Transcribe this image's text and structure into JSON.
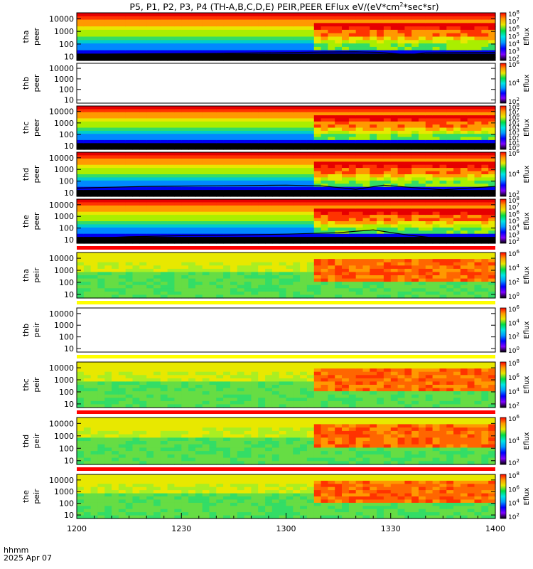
{
  "chart_data": {
    "type": "heatmap",
    "title": "P5, P1, P2, P3, P4 (TH-A,B,C,D,E) PEIR,PEER EFlux eV/(eV*cm^2*sec*sr)",
    "title_main": "P5, P1, P2, P3, P4 (TH-A,B,C,D,E) PEIR,PEER EFlux eV/(eV*cm",
    "title_sup": "2",
    "title_tail": "*sec*sr)",
    "x": {
      "label": "hhmm",
      "date": "2025 Apr 07",
      "ticks": [
        "1200",
        "1230",
        "1300",
        "1330",
        "1400"
      ],
      "range_minutes": [
        0,
        120
      ],
      "minor_step_minutes": 5
    },
    "colorbar_label": "Eflux",
    "panels": [
      {
        "probe": "tha",
        "species": "peer",
        "empty": false,
        "ylim": [
          5,
          30000
        ],
        "yscale": "log",
        "yticks": [
          "10",
          "100",
          "1000",
          "10000"
        ],
        "cbar_ticks": [
          "10^2",
          "10^3",
          "10^4",
          "10^5",
          "10^6",
          "10^7",
          "10^8"
        ],
        "scp_curve": [
          [
            0,
            15
          ],
          [
            10,
            16
          ],
          [
            20,
            17
          ],
          [
            40,
            18
          ],
          [
            60,
            21
          ],
          [
            70,
            23
          ],
          [
            80,
            24
          ],
          [
            87,
            22
          ],
          [
            95,
            14
          ],
          [
            100,
            20
          ],
          [
            110,
            21
          ],
          [
            120,
            22
          ]
        ]
      },
      {
        "probe": "thb",
        "species": "peer",
        "empty": true,
        "ylim": [
          5,
          30000
        ],
        "yscale": "log",
        "yticks": [
          "10",
          "100",
          "1000",
          "10000"
        ],
        "cbar_ticks": [
          "10^2",
          "10^4",
          "10^6"
        ]
      },
      {
        "probe": "thc",
        "species": "peer",
        "empty": false,
        "ylim": [
          5,
          30000
        ],
        "yscale": "log",
        "yticks": [
          "10",
          "100",
          "1000",
          "10000"
        ],
        "cbar_ticks": [
          "10^0",
          "10^1",
          "10^2",
          "10^3",
          "10^4",
          "10^5",
          "10^6",
          "10^7",
          "10^8"
        ]
      },
      {
        "probe": "thd",
        "species": "peer",
        "empty": false,
        "ylim": [
          5,
          30000
        ],
        "yscale": "log",
        "yticks": [
          "10",
          "100",
          "1000",
          "10000"
        ],
        "cbar_ticks": [
          "10^2",
          "10^4",
          "10^6"
        ],
        "scp_curve": [
          [
            0,
            25
          ],
          [
            10,
            30
          ],
          [
            20,
            35
          ],
          [
            40,
            40
          ],
          [
            60,
            45
          ],
          [
            70,
            40
          ],
          [
            80,
            20
          ],
          [
            88,
            45
          ],
          [
            95,
            30
          ],
          [
            105,
            18
          ],
          [
            112,
            25
          ],
          [
            120,
            35
          ]
        ]
      },
      {
        "probe": "the",
        "species": "peer",
        "empty": false,
        "ylim": [
          5,
          30000
        ],
        "yscale": "log",
        "yticks": [
          "10",
          "100",
          "1000",
          "10000"
        ],
        "cbar_ticks": [
          "10^2",
          "10^3",
          "10^4",
          "10^5",
          "10^6",
          "10^7",
          "10^8"
        ],
        "scp_curve": [
          [
            0,
            12
          ],
          [
            15,
            18
          ],
          [
            30,
            22
          ],
          [
            45,
            25
          ],
          [
            60,
            30
          ],
          [
            75,
            40
          ],
          [
            85,
            70
          ],
          [
            95,
            25
          ],
          [
            105,
            12
          ],
          [
            120,
            14
          ]
        ]
      },
      {
        "probe": "tha",
        "species": "peir",
        "empty": false,
        "ylim": [
          5,
          30000
        ],
        "yscale": "log",
        "yticks": [
          "10",
          "100",
          "1000",
          "10000"
        ],
        "cbar_ticks": [
          "10^0",
          "10^2",
          "10^4",
          "10^6"
        ]
      },
      {
        "probe": "thb",
        "species": "peir",
        "empty": true,
        "ylim": [
          5,
          30000
        ],
        "yscale": "log",
        "yticks": [
          "10",
          "100",
          "1000",
          "10000"
        ],
        "cbar_ticks": [
          "10^0",
          "10^2",
          "10^4",
          "10^6"
        ]
      },
      {
        "probe": "thc",
        "species": "peir",
        "empty": false,
        "ylim": [
          5,
          30000
        ],
        "yscale": "log",
        "yticks": [
          "10",
          "100",
          "1000",
          "10000"
        ],
        "cbar_ticks": [
          "10^2",
          "10^4",
          "10^6",
          "10^8"
        ]
      },
      {
        "probe": "thd",
        "species": "peir",
        "empty": false,
        "ylim": [
          5,
          30000
        ],
        "yscale": "log",
        "yticks": [
          "10",
          "100",
          "1000",
          "10000"
        ],
        "cbar_ticks": [
          "10^2",
          "10^4",
          "10^6"
        ]
      },
      {
        "probe": "the",
        "species": "peir",
        "empty": false,
        "ylim": [
          5,
          30000
        ],
        "yscale": "log",
        "yticks": [
          "10",
          "100",
          "1000",
          "10000"
        ],
        "cbar_ticks": [
          "10^2",
          "10^4",
          "10^6",
          "10^8"
        ]
      }
    ],
    "colormap": [
      "#000000",
      "#7f00ff",
      "#0000ff",
      "#0099ff",
      "#00e5e5",
      "#00dd44",
      "#e8e800",
      "#ff9900",
      "#ff0000",
      "#ffffff"
    ],
    "colors": {
      "mode_bar_red": "#ff0000",
      "mode_bar_yellow": "#ffff00",
      "scp_line": "#000000"
    }
  }
}
